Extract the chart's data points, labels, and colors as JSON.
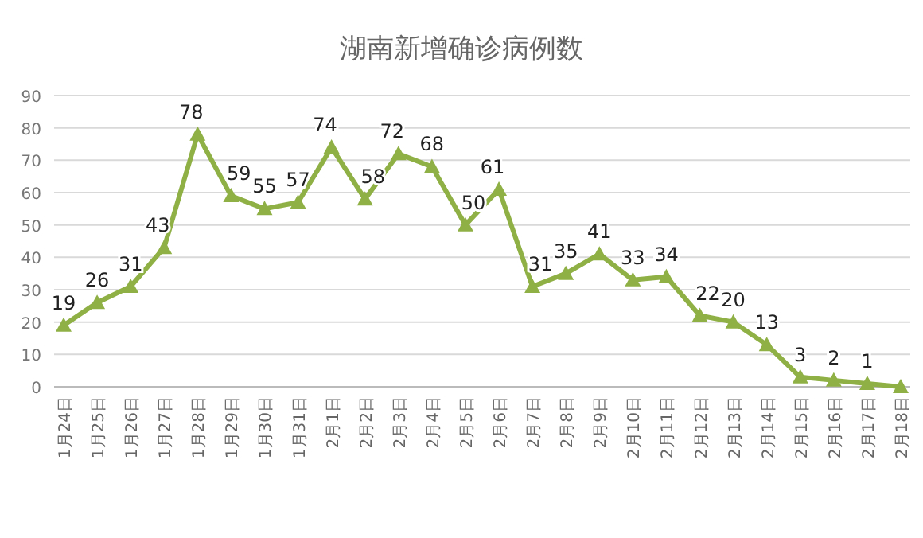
{
  "chart_data": {
    "type": "line",
    "title": "湖南新增确诊病例数",
    "categories": [
      "1月24日",
      "1月25日",
      "1月26日",
      "1月27日",
      "1月28日",
      "1月29日",
      "1月30日",
      "1月31日",
      "2月1日",
      "2月2日",
      "2月3日",
      "2月4日",
      "2月5日",
      "2月6日",
      "2月7日",
      "2月8日",
      "2月9日",
      "2月10日",
      "2月11日",
      "2月12日",
      "2月13日",
      "2月14日",
      "2月15日",
      "2月16日",
      "2月17日",
      "2月18日"
    ],
    "values": [
      19,
      26,
      31,
      43,
      78,
      59,
      55,
      57,
      74,
      58,
      72,
      68,
      50,
      61,
      31,
      35,
      41,
      33,
      34,
      22,
      20,
      13,
      3,
      2,
      1,
      0
    ],
    "value_labels": [
      "19",
      "26",
      "31",
      "43",
      "78",
      "59",
      "55",
      "57",
      "74",
      "58",
      "72",
      "68",
      "50",
      "61",
      "31",
      "35",
      "41",
      "33",
      "34",
      "22",
      "20",
      "13",
      "3",
      "2",
      "1",
      null
    ],
    "color": "#8fb045",
    "marker": "triangle",
    "line_style": "solid",
    "grid": "y",
    "ylim": [
      0,
      90
    ],
    "yticks": [
      0,
      10,
      20,
      30,
      40,
      50,
      60,
      70,
      80,
      90
    ]
  }
}
